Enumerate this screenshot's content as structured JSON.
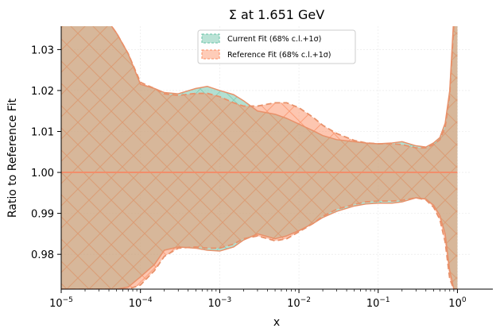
{
  "chart_data": {
    "type": "area",
    "title": "Σ at 1.651 GeV",
    "xlabel": "x",
    "ylabel": "Ratio to Reference Fit",
    "xscale": "log",
    "xlim": [
      1e-05,
      1.5
    ],
    "ylim": [
      0.9715,
      1.0357
    ],
    "grid": "faint dotted",
    "legend_position": "top-center",
    "x_ticks": [
      {
        "value": 1e-05,
        "base": "10",
        "exp": "−5"
      },
      {
        "value": 0.0001,
        "base": "10",
        "exp": "−4"
      },
      {
        "value": 0.001,
        "base": "10",
        "exp": "−3"
      },
      {
        "value": 0.01,
        "base": "10",
        "exp": "−2"
      },
      {
        "value": 0.1,
        "base": "10",
        "exp": "−1"
      },
      {
        "value": 1,
        "base": "10",
        "exp": "0"
      }
    ],
    "y_ticks": [
      {
        "value": 0.98,
        "label": "0.98"
      },
      {
        "value": 0.99,
        "label": "0.99"
      },
      {
        "value": 1.0,
        "label": "1.00"
      },
      {
        "value": 1.01,
        "label": "1.01"
      },
      {
        "value": 1.02,
        "label": "1.02"
      },
      {
        "value": 1.03,
        "label": "1.03"
      }
    ],
    "x": [
      1e-05,
      2e-05,
      3e-05,
      5e-05,
      7e-05,
      0.0001,
      0.00015,
      0.0002,
      0.0003,
      0.0005,
      0.0007,
      0.001,
      0.0015,
      0.002,
      0.003,
      0.005,
      0.007,
      0.01,
      0.015,
      0.02,
      0.03,
      0.05,
      0.07,
      0.1,
      0.15,
      0.2,
      0.3,
      0.4,
      0.5,
      0.6,
      0.7,
      0.8,
      0.9,
      1.0
    ],
    "series": [
      {
        "name": "Current Fit (68% c.l.+1σ)",
        "color": "#66c2a5",
        "center": [
          1.0,
          1.0,
          1.0,
          1.0,
          1.0,
          1.0,
          1.0,
          1.0,
          1.0,
          1.0,
          1.0,
          1.0,
          1.0,
          1.0,
          1.0,
          1.0,
          1.0,
          1.0,
          1.0,
          1.0,
          1.0,
          1.0,
          1.0,
          1.0,
          1.0,
          1.0,
          1.0,
          1.0,
          1.0,
          1.0,
          1.0,
          1.0,
          1.0,
          1.0
        ],
        "upper": [
          1.04,
          1.04,
          1.04,
          1.034,
          1.029,
          1.0215,
          1.0205,
          1.0195,
          1.0192,
          1.0205,
          1.021,
          1.02,
          1.019,
          1.0175,
          1.015,
          1.0142,
          1.0132,
          1.0118,
          1.0102,
          1.009,
          1.008,
          1.0075,
          1.0072,
          1.007,
          1.0072,
          1.0075,
          1.0065,
          1.0062,
          1.0072,
          1.0085,
          1.012,
          1.02,
          1.038,
          1.04
        ],
        "lower": [
          0.9715,
          0.9715,
          0.9715,
          0.9715,
          0.972,
          0.9745,
          0.9775,
          0.981,
          0.9818,
          0.9815,
          0.981,
          0.9808,
          0.9818,
          0.9835,
          0.985,
          0.9838,
          0.9845,
          0.9858,
          0.9875,
          0.989,
          0.9905,
          0.9918,
          0.9923,
          0.9925,
          0.9925,
          0.9928,
          0.9938,
          0.9935,
          0.992,
          0.9895,
          0.985,
          0.976,
          0.9715,
          0.9715
        ]
      },
      {
        "name": "Reference Fit (68% c.l.+1σ)",
        "color": "#fc8d62",
        "center": [
          1.0,
          1.0,
          1.0,
          1.0,
          1.0,
          1.0,
          1.0,
          1.0,
          1.0,
          1.0,
          1.0,
          1.0,
          1.0,
          1.0,
          1.0,
          1.0,
          1.0,
          1.0,
          1.0,
          1.0,
          1.0,
          1.0,
          1.0,
          1.0,
          1.0,
          1.0,
          1.0,
          1.0,
          1.0,
          1.0,
          1.0,
          1.0,
          1.0,
          1.0
        ],
        "upper": [
          1.04,
          1.04,
          1.04,
          1.034,
          1.029,
          1.022,
          1.0205,
          1.0192,
          1.0188,
          1.0193,
          1.0193,
          1.0185,
          1.017,
          1.0162,
          1.0162,
          1.017,
          1.017,
          1.0158,
          1.0135,
          1.0115,
          1.0095,
          1.0078,
          1.0072,
          1.007,
          1.007,
          1.0068,
          1.006,
          1.006,
          1.0068,
          1.008,
          1.011,
          1.019,
          1.036,
          1.04
        ],
        "lower": [
          0.9715,
          0.9715,
          0.9715,
          0.9715,
          0.9715,
          0.9725,
          0.976,
          0.9795,
          0.9815,
          0.9818,
          0.9815,
          0.9815,
          0.9825,
          0.9838,
          0.9845,
          0.9833,
          0.9838,
          0.9855,
          0.9875,
          0.9893,
          0.991,
          0.9922,
          0.9928,
          0.993,
          0.993,
          0.9932,
          0.9938,
          0.9933,
          0.9915,
          0.9885,
          0.983,
          0.974,
          0.9715,
          0.9715
        ]
      }
    ]
  }
}
